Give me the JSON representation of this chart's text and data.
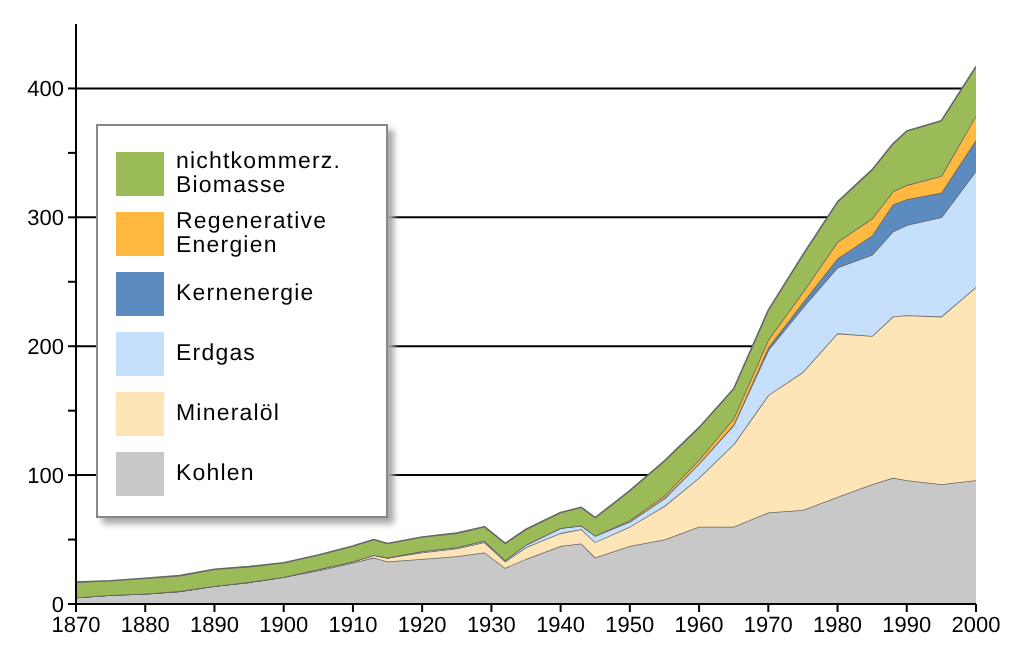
{
  "chart_data": {
    "type": "area",
    "stacked": true,
    "x": [
      1870,
      1875,
      1880,
      1885,
      1890,
      1895,
      1900,
      1905,
      1910,
      1913,
      1915,
      1920,
      1925,
      1929,
      1932,
      1935,
      1940,
      1943,
      1945,
      1950,
      1955,
      1960,
      1965,
      1970,
      1975,
      1980,
      1985,
      1988,
      1990,
      1995,
      2000
    ],
    "series": [
      {
        "name": "Kohlen",
        "color": "#c8c8c8",
        "values": [
          5,
          7,
          8,
          10,
          14,
          17,
          21,
          26,
          32,
          36,
          33,
          35,
          37,
          40,
          28,
          35,
          45,
          47,
          36,
          45,
          50,
          60,
          60,
          71,
          73,
          83,
          93,
          98,
          96,
          93,
          96
        ]
      },
      {
        "name": "Mineralöl",
        "color": "#fde5b8",
        "values": [
          0,
          0,
          0,
          0,
          0,
          0,
          0,
          1,
          1,
          2,
          3,
          5,
          6,
          8,
          5,
          9,
          10,
          11,
          12,
          15,
          26,
          38,
          64,
          91,
          107,
          127,
          115,
          125,
          128,
          130,
          150
        ]
      },
      {
        "name": "Erdgas",
        "color": "#c6dffa",
        "values": [
          0,
          0,
          0,
          0,
          0,
          0,
          0,
          0,
          0,
          0,
          0,
          1,
          1,
          1,
          1,
          2,
          4,
          3,
          5,
          4,
          6,
          11,
          15,
          35,
          50,
          51,
          63,
          66,
          70,
          77,
          90
        ]
      },
      {
        "name": "Kernenergie",
        "color": "#5b8bbf",
        "values": [
          0,
          0,
          0,
          0,
          0,
          0,
          0,
          0,
          0,
          0,
          0,
          0,
          0,
          0,
          0,
          0,
          0,
          0,
          0,
          0,
          0,
          0,
          0,
          2,
          4,
          7,
          15,
          21,
          20,
          19,
          24
        ]
      },
      {
        "name": "Regenerative Energien",
        "color": "#ffb940",
        "values": [
          0,
          0,
          0,
          0,
          0,
          0,
          0,
          0,
          0,
          0,
          0,
          0,
          0,
          0,
          0,
          0,
          0,
          0,
          0,
          1,
          2,
          3,
          5,
          6,
          8,
          13,
          13,
          10,
          11,
          13,
          19
        ]
      },
      {
        "name": "nichtkommerz. Biomasse",
        "color": "#9bbb59",
        "values": [
          12,
          11,
          12,
          12,
          13,
          12,
          11,
          11,
          12,
          12,
          11,
          11,
          11,
          11,
          13,
          12,
          12,
          14,
          14,
          23,
          27,
          25,
          23,
          23,
          29,
          31,
          38,
          37,
          42,
          43,
          38
        ]
      }
    ],
    "xlim": [
      1870,
      2000
    ],
    "xticks": [
      1870,
      1880,
      1890,
      1900,
      1910,
      1920,
      1930,
      1940,
      1950,
      1960,
      1970,
      1980,
      1990,
      2000
    ],
    "ylim": [
      0,
      450
    ],
    "yticks": [
      0,
      {
        "value": 50,
        "label": null
      },
      100,
      {
        "value": 150,
        "label": null
      },
      200,
      {
        "value": 250,
        "label": null
      },
      300,
      {
        "value": 350,
        "label": null
      },
      400
    ],
    "grid": "y",
    "legend": "left"
  }
}
